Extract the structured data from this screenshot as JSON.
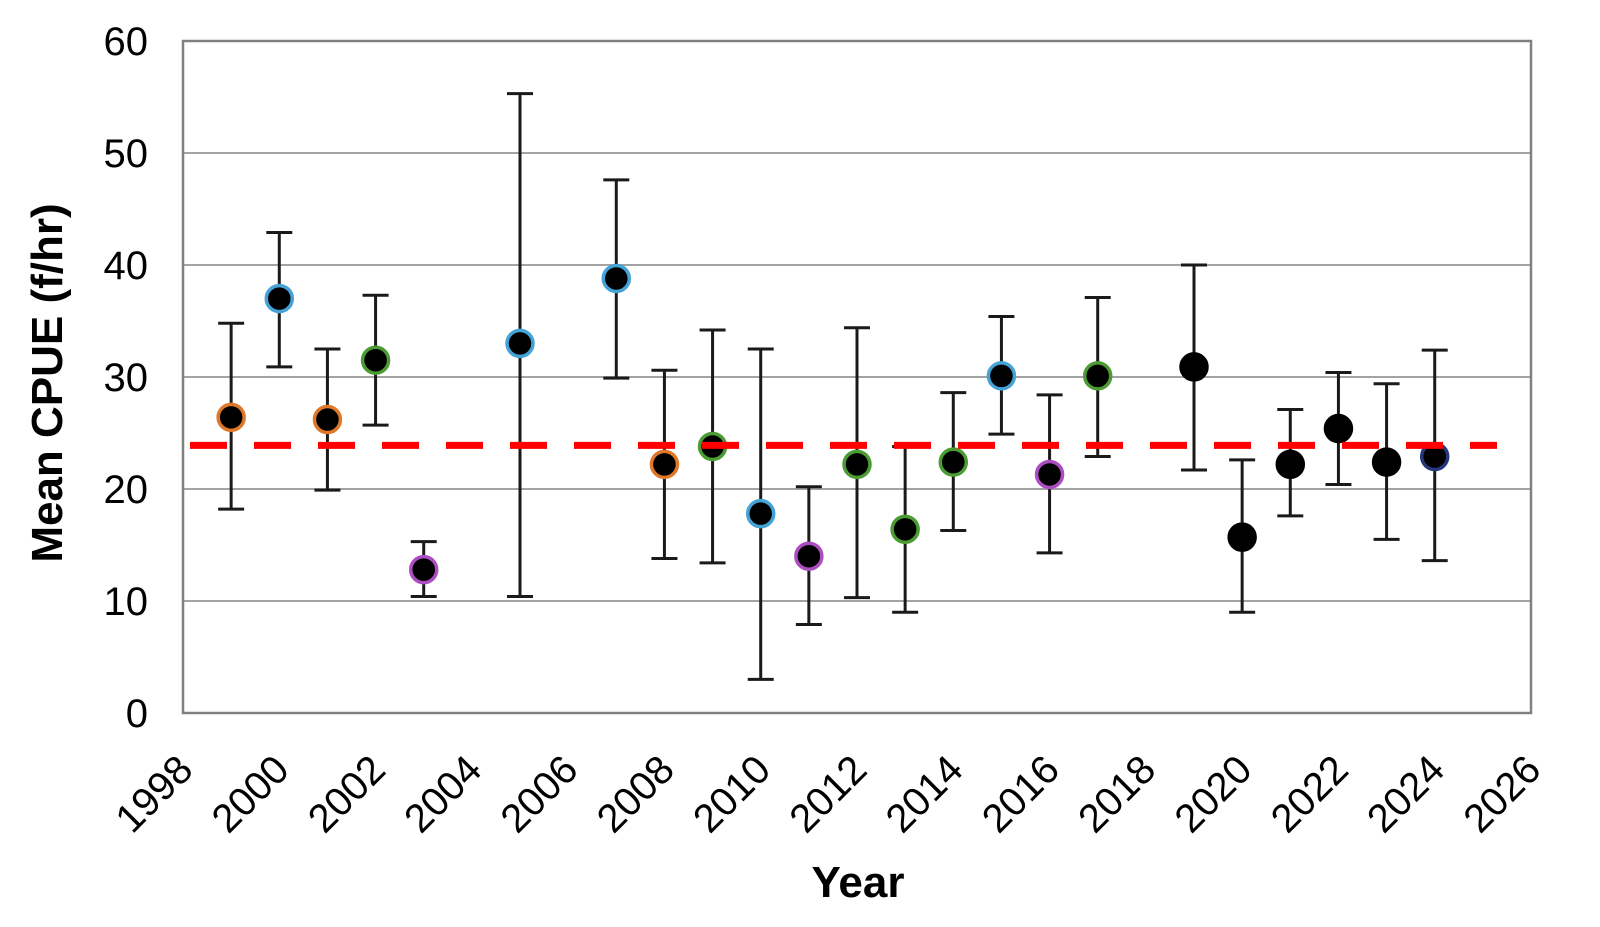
{
  "chart_data": {
    "type": "scatter",
    "title": "",
    "xlabel": "Year",
    "ylabel": "Mean CPUE (f/hr)",
    "xlim": [
      1998,
      2026
    ],
    "ylim": [
      0,
      60
    ],
    "x_ticks": [
      1998,
      2000,
      2002,
      2004,
      2006,
      2008,
      2010,
      2012,
      2014,
      2016,
      2018,
      2020,
      2022,
      2024,
      2026
    ],
    "y_ticks": [
      0,
      10,
      20,
      30,
      40,
      50,
      60
    ],
    "grid": "horizontal",
    "legend": "none",
    "reference_line": {
      "value": 23.9,
      "style": "dashed",
      "color": "#FE0000"
    },
    "series": [
      {
        "name": "Mean CPUE",
        "points": [
          {
            "year": 1999,
            "value": 26.4,
            "err_lo": 18.2,
            "err_hi": 34.8,
            "outline": "orange"
          },
          {
            "year": 2000,
            "value": 37.0,
            "err_lo": 30.9,
            "err_hi": 42.9,
            "outline": "blue"
          },
          {
            "year": 2001,
            "value": 26.2,
            "err_lo": 19.9,
            "err_hi": 32.5,
            "outline": "orange"
          },
          {
            "year": 2002,
            "value": 31.5,
            "err_lo": 25.7,
            "err_hi": 37.3,
            "outline": "green"
          },
          {
            "year": 2003,
            "value": 12.8,
            "err_lo": 10.4,
            "err_hi": 15.3,
            "outline": "purple"
          },
          {
            "year": 2005,
            "value": 33.0,
            "err_lo": 10.4,
            "err_hi": 55.3,
            "outline": "blue"
          },
          {
            "year": 2007,
            "value": 38.8,
            "err_lo": 29.9,
            "err_hi": 47.6,
            "outline": "blue"
          },
          {
            "year": 2008,
            "value": 22.2,
            "err_lo": 13.8,
            "err_hi": 30.6,
            "outline": "orange"
          },
          {
            "year": 2009,
            "value": 23.8,
            "err_lo": 13.4,
            "err_hi": 34.2,
            "outline": "green"
          },
          {
            "year": 2010,
            "value": 17.8,
            "err_lo": 3.0,
            "err_hi": 32.5,
            "outline": "blue"
          },
          {
            "year": 2011,
            "value": 14.0,
            "err_lo": 7.9,
            "err_hi": 20.2,
            "outline": "purple"
          },
          {
            "year": 2012,
            "value": 22.2,
            "err_lo": 10.3,
            "err_hi": 34.4,
            "outline": "green"
          },
          {
            "year": 2013,
            "value": 16.4,
            "err_lo": 9.0,
            "err_hi": 23.8,
            "outline": "green"
          },
          {
            "year": 2014,
            "value": 22.4,
            "err_lo": 16.3,
            "err_hi": 28.6,
            "outline": "green"
          },
          {
            "year": 2015,
            "value": 30.1,
            "err_lo": 24.9,
            "err_hi": 35.4,
            "outline": "blue"
          },
          {
            "year": 2016,
            "value": 21.3,
            "err_lo": 14.3,
            "err_hi": 28.4,
            "outline": "purple"
          },
          {
            "year": 2017,
            "value": 30.1,
            "err_lo": 22.9,
            "err_hi": 37.1,
            "outline": "green"
          },
          {
            "year": 2019,
            "value": 30.9,
            "err_lo": 21.7,
            "err_hi": 40.0,
            "outline": "black"
          },
          {
            "year": 2020,
            "value": 15.7,
            "err_lo": 9.0,
            "err_hi": 22.6,
            "outline": "black"
          },
          {
            "year": 2021,
            "value": 22.2,
            "err_lo": 17.6,
            "err_hi": 27.1,
            "outline": "black"
          },
          {
            "year": 2022,
            "value": 25.4,
            "err_lo": 20.4,
            "err_hi": 30.4,
            "outline": "black"
          },
          {
            "year": 2023,
            "value": 22.4,
            "err_lo": 15.5,
            "err_hi": 29.4,
            "outline": "black"
          },
          {
            "year": 2024,
            "value": 22.9,
            "err_lo": 13.6,
            "err_hi": 32.4,
            "outline": "navy"
          }
        ]
      }
    ],
    "colors": {
      "marker_fill": "#000000",
      "error_bar": "#1a1a1a",
      "gridline": "#a3a3a3",
      "plot_border": "#808080",
      "reference_red": "#FE0000",
      "outline_orange": "#E0782A",
      "outline_blue": "#44A2D6",
      "outline_green": "#4C9C34",
      "outline_purple": "#AC4EC1",
      "outline_navy": "#24387A",
      "outline_black": "#000000"
    }
  }
}
